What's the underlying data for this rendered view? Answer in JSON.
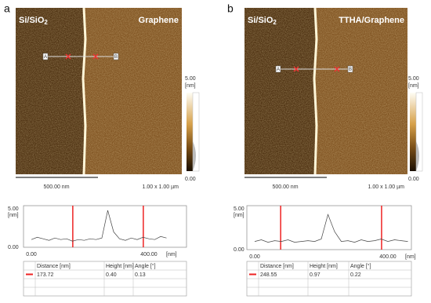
{
  "panels": [
    {
      "label": "a",
      "image": {
        "left_label": "Si/SiO",
        "left_sub": "2",
        "right_label": "Graphene",
        "marker_start": "A",
        "marker_end": "B",
        "scale_bar": "500.00 nm",
        "size": "1.00 x 1.00 µm"
      },
      "colorbar": {
        "max": "5.00",
        "unit": "[nm]",
        "min": "0.00"
      },
      "profile": {
        "yticks": [
          {
            "value": 0,
            "label": "0.00"
          },
          {
            "value": 5,
            "label": "5.00"
          }
        ],
        "y_unit": "[nm]",
        "xticks": [
          {
            "value": 0,
            "label": "0.00"
          },
          {
            "value": 400,
            "label": "400.00"
          }
        ],
        "x_unit": "[nm]",
        "x": [
          0,
          20,
          40,
          60,
          80,
          100,
          120,
          140,
          160,
          180,
          200,
          220,
          240,
          260,
          280,
          300,
          320,
          340,
          360,
          380,
          400,
          420,
          440,
          460
        ],
        "values": [
          1.0,
          1.3,
          1.1,
          0.9,
          1.2,
          1.0,
          1.1,
          0.8,
          1.0,
          0.9,
          1.1,
          1.0,
          1.2,
          4.8,
          2.0,
          1.1,
          0.9,
          1.2,
          1.0,
          1.3,
          1.1,
          1.0,
          1.4,
          1.2
        ],
        "cursors": [
          141,
          381
        ]
      },
      "table": {
        "columns": [
          "Distance [nm]",
          "Height [nm]",
          "Angle [°]"
        ],
        "row": [
          "173.72",
          "0.40",
          "0.13"
        ]
      }
    },
    {
      "label": "b",
      "image": {
        "left_label": "Si/SiO",
        "left_sub": "2",
        "right_label": "TTHA/Graphene",
        "marker_start": "A",
        "marker_end": "B",
        "scale_bar": "500.00 nm",
        "size": "1.00 x 1.00 µm"
      },
      "colorbar": {
        "max": "5.00",
        "unit": "[nm]",
        "min": "0.00"
      },
      "profile": {
        "yticks": [
          {
            "value": 0,
            "label": "0.00"
          },
          {
            "value": 5,
            "label": "5.00"
          }
        ],
        "y_unit": "[nm]",
        "xticks": [
          {
            "value": 0,
            "label": "0.00"
          },
          {
            "value": 400,
            "label": "400.00"
          }
        ],
        "x_unit": "[nm]",
        "x": [
          0,
          20,
          40,
          60,
          80,
          100,
          120,
          140,
          160,
          180,
          200,
          220,
          240,
          260,
          280,
          300,
          320,
          340,
          360,
          380,
          400,
          420,
          440,
          460
        ],
        "values": [
          1.0,
          1.2,
          0.9,
          1.1,
          1.0,
          1.2,
          0.9,
          1.0,
          1.1,
          1.0,
          1.3,
          4.3,
          2.2,
          1.0,
          1.1,
          0.9,
          1.2,
          1.0,
          1.1,
          1.3,
          1.0,
          1.2,
          1.1,
          1.0
        ],
        "cursors": [
          78,
          381
        ]
      },
      "table": {
        "columns": [
          "Distance [nm]",
          "Height [nm]",
          "Angle [°]"
        ],
        "row": [
          "248.55",
          "0.97",
          "0.22"
        ]
      }
    }
  ]
}
